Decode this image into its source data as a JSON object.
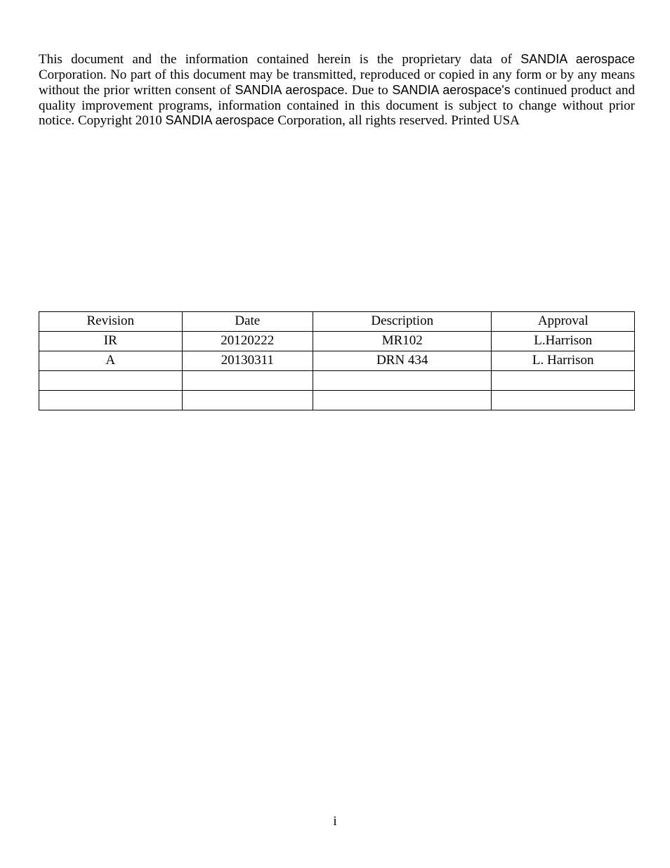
{
  "paragraph": {
    "seg1": "This document and the information contained herein is the proprietary data of ",
    "brand1": "SANDIA aerospace",
    "seg2": " Corporation.  No part of this document may be transmitted, reproduced or copied in any form or by any means without the prior written consent of ",
    "brand2": "SANDIA aerospace",
    "seg3": ".  Due to ",
    "brand3": "SANDIA aerospace's",
    "seg4": " continued product and quality improvement programs, information contained in this document is subject to change without prior notice.  Copyright 2010 ",
    "brand4": "SANDIA aerospace",
    "seg5": " Corporation, all rights reserved.  Printed USA"
  },
  "table": {
    "columns": [
      "Revision",
      "Date",
      "Description",
      "Approval"
    ],
    "rows": [
      [
        "IR",
        "20120222",
        "MR102",
        "L.Harrison"
      ],
      [
        "A",
        "20130311",
        "DRN 434",
        "L. Harrison"
      ],
      [
        "",
        "",
        "",
        ""
      ],
      [
        "",
        "",
        "",
        ""
      ]
    ],
    "border_color": "#000000",
    "background_color": "#ffffff",
    "font_size_pt": 14
  },
  "page_number": "i",
  "colors": {
    "text": "#000000",
    "background": "#ffffff"
  },
  "fonts": {
    "body": "Times New Roman",
    "brand": "Arial"
  }
}
